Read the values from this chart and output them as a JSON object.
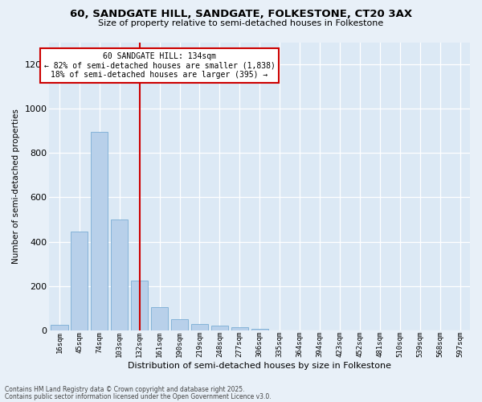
{
  "title1": "60, SANDGATE HILL, SANDGATE, FOLKESTONE, CT20 3AX",
  "title2": "Size of property relative to semi-detached houses in Folkestone",
  "xlabel": "Distribution of semi-detached houses by size in Folkestone",
  "ylabel": "Number of semi-detached properties",
  "categories": [
    "16sqm",
    "45sqm",
    "74sqm",
    "103sqm",
    "132sqm",
    "161sqm",
    "190sqm",
    "219sqm",
    "248sqm",
    "277sqm",
    "306sqm",
    "335sqm",
    "364sqm",
    "394sqm",
    "423sqm",
    "452sqm",
    "481sqm",
    "510sqm",
    "539sqm",
    "568sqm",
    "597sqm"
  ],
  "values": [
    25,
    445,
    895,
    500,
    225,
    103,
    50,
    27,
    22,
    14,
    8,
    0,
    0,
    0,
    0,
    0,
    0,
    0,
    0,
    0,
    0
  ],
  "bar_color": "#b8d0ea",
  "bar_edge_color": "#7aadd4",
  "vline_x": 4,
  "vline_color": "#cc0000",
  "ann_line1": "60 SANDGATE HILL: 134sqm",
  "ann_line2": "← 82% of semi-detached houses are smaller (1,838)",
  "ann_line3": "18% of semi-detached houses are larger (395) →",
  "annotation_box_color": "#ffffff",
  "annotation_box_edge": "#cc0000",
  "ylim": [
    0,
    1300
  ],
  "yticks": [
    0,
    200,
    400,
    600,
    800,
    1000,
    1200
  ],
  "ax_bg_color": "#dce9f5",
  "fig_bg_color": "#e8f0f8",
  "grid_color": "#ffffff",
  "footer1": "Contains HM Land Registry data © Crown copyright and database right 2025.",
  "footer2": "Contains public sector information licensed under the Open Government Licence v3.0."
}
